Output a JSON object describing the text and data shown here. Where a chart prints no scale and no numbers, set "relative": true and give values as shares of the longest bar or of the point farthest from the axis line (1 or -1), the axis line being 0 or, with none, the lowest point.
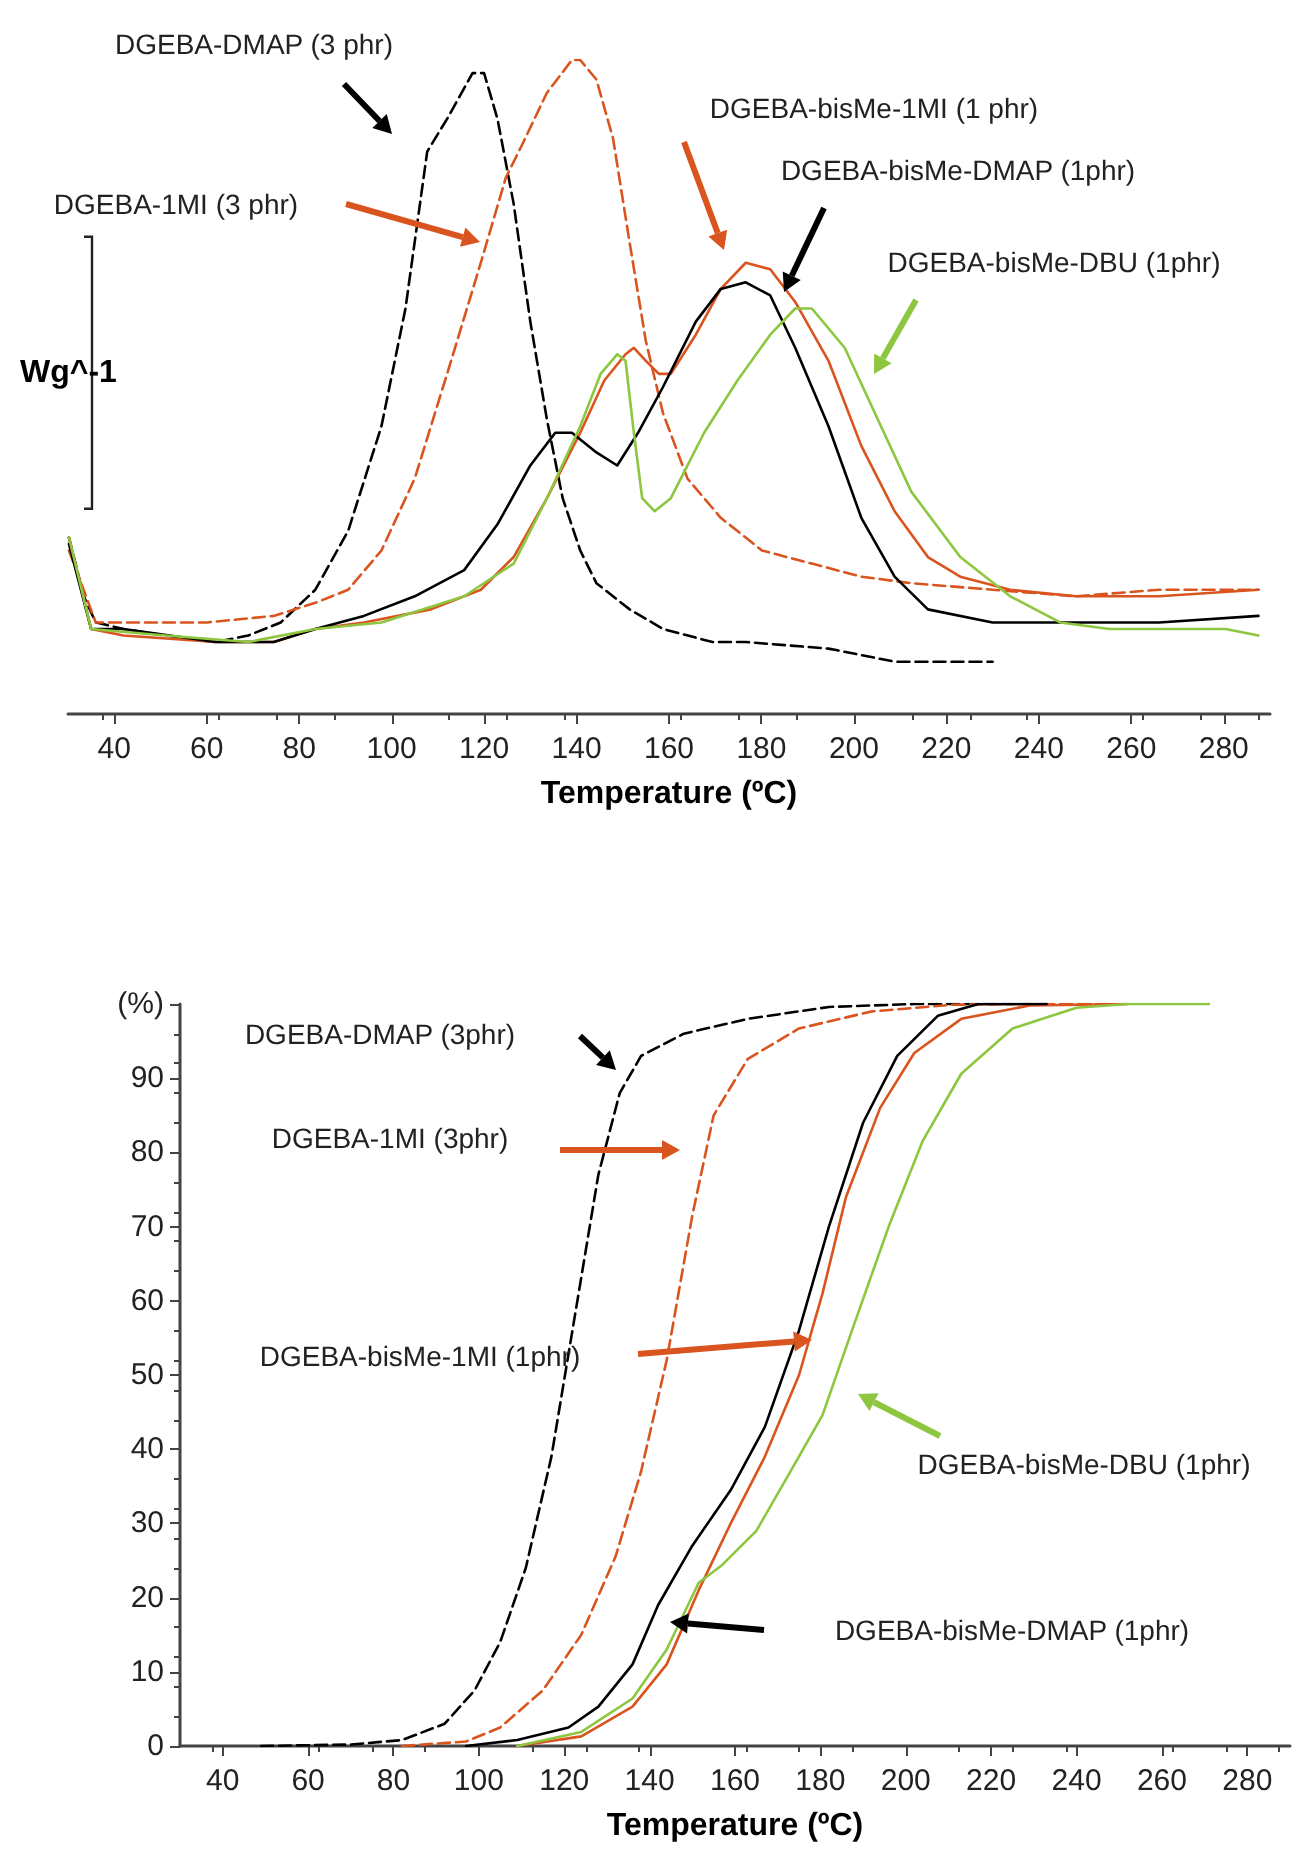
{
  "chart_data": [
    {
      "type": "line",
      "relative": true,
      "marker": "none",
      "grid": false,
      "xlabel": "Temperature (ºC)",
      "ylabel": "Wg^-1",
      "xlim": [
        30,
        290
      ],
      "xticks": [
        40,
        60,
        80,
        100,
        120,
        140,
        160,
        180,
        200,
        220,
        240,
        260,
        280
      ],
      "annotations": [
        "DGEBA-DMAP (3 phr)",
        "DGEBA-1MI (3 phr)",
        "DGEBA-bisMe-1MI (1 phr)",
        "DGEBA-bisMe-DMAP (1phr)",
        "DGEBA-bisMe-DBU (1phr)"
      ],
      "series": [
        {
          "color": "#000000",
          "line_style": "dashed",
          "x": [
            30.2,
            33.4,
            36,
            42,
            51,
            62,
            69,
            76,
            83.5,
            90.6,
            97.8,
            103,
            107.7,
            112,
            117.5,
            120,
            122.9,
            126.4,
            130,
            133.6,
            137,
            140.8,
            144.3,
            151.5,
            158.7,
            169.4,
            176.6,
            194.5,
            208.8,
            230
          ],
          "values": [
            0.27,
            0.18,
            0.14,
            0.13,
            0.12,
            0.11,
            0.12,
            0.14,
            0.19,
            0.28,
            0.44,
            0.62,
            0.86,
            0.91,
            0.98,
            0.98,
            0.91,
            0.78,
            0.6,
            0.45,
            0.33,
            0.25,
            0.2,
            0.16,
            0.13,
            0.11,
            0.11,
            0.1,
            0.08,
            0.08
          ]
        },
        {
          "color": "#d9541e",
          "line_style": "dashed",
          "x": [
            30.2,
            36,
            42,
            60,
            74.5,
            83.5,
            90.6,
            97.8,
            105,
            112,
            119.3,
            124.7,
            128.2,
            133.6,
            139,
            140.8,
            144.3,
            147.9,
            151.5,
            155,
            158.7,
            164,
            171.2,
            180.1,
            190.9,
            201.6,
            212.4,
            230,
            248,
            266,
            287.5
          ],
          "values": [
            0.25,
            0.14,
            0.14,
            0.14,
            0.15,
            0.17,
            0.19,
            0.25,
            0.36,
            0.52,
            0.69,
            0.82,
            0.87,
            0.95,
            1.0,
            1.0,
            0.97,
            0.88,
            0.72,
            0.57,
            0.46,
            0.36,
            0.3,
            0.25,
            0.23,
            0.21,
            0.2,
            0.19,
            0.18,
            0.19,
            0.19
          ]
        },
        {
          "color": "#d9541e",
          "line_style": "solid",
          "x": [
            30.2,
            35,
            42,
            62,
            74.5,
            83.5,
            94,
            108.5,
            119.3,
            126.4,
            133.6,
            140.8,
            146,
            150.6,
            152.4,
            155,
            157.8,
            160.4,
            165.8,
            171.2,
            176.6,
            181.9,
            187.3,
            194.5,
            201.6,
            208.8,
            216,
            223,
            233.8,
            248,
            266,
            287.5
          ],
          "values": [
            0.27,
            0.13,
            0.12,
            0.11,
            0.11,
            0.13,
            0.14,
            0.16,
            0.19,
            0.24,
            0.33,
            0.43,
            0.51,
            0.55,
            0.56,
            0.54,
            0.52,
            0.52,
            0.58,
            0.65,
            0.69,
            0.68,
            0.63,
            0.54,
            0.41,
            0.31,
            0.24,
            0.21,
            0.19,
            0.18,
            0.18,
            0.19
          ]
        },
        {
          "color": "#000000",
          "line_style": "solid",
          "x": [
            30.2,
            35,
            42,
            62,
            74.5,
            83.5,
            94,
            105,
            115.7,
            122.9,
            130,
            135.4,
            139,
            144.3,
            148.8,
            153.3,
            158.7,
            165.8,
            171.2,
            176.6,
            181.9,
            187.3,
            194.5,
            201.6,
            208.8,
            216,
            230,
            244.6,
            266,
            287.5
          ],
          "values": [
            0.26,
            0.13,
            0.13,
            0.11,
            0.11,
            0.13,
            0.15,
            0.18,
            0.22,
            0.29,
            0.38,
            0.43,
            0.43,
            0.4,
            0.38,
            0.43,
            0.5,
            0.6,
            0.65,
            0.66,
            0.64,
            0.56,
            0.44,
            0.3,
            0.21,
            0.16,
            0.14,
            0.14,
            0.14,
            0.15
          ]
        },
        {
          "color": "#8dc63f",
          "line_style": "solid",
          "x": [
            30.2,
            35,
            51,
            69,
            83.5,
            97.8,
            115.7,
            126.4,
            133.6,
            140.8,
            145.2,
            148.8,
            150.6,
            152.4,
            154.2,
            156.9,
            160.4,
            167.6,
            174.8,
            181.9,
            187.3,
            190.9,
            198,
            205.2,
            212.4,
            223,
            233.8,
            244.6,
            255.3,
            280.4,
            287.5
          ],
          "values": [
            0.27,
            0.13,
            0.12,
            0.11,
            0.13,
            0.14,
            0.18,
            0.23,
            0.33,
            0.44,
            0.52,
            0.55,
            0.54,
            0.43,
            0.33,
            0.31,
            0.33,
            0.43,
            0.51,
            0.58,
            0.62,
            0.62,
            0.56,
            0.45,
            0.34,
            0.24,
            0.18,
            0.14,
            0.13,
            0.13,
            0.12
          ]
        }
      ]
    },
    {
      "type": "line",
      "marker": "none",
      "grid": false,
      "xlabel": "Temperature (ºC)",
      "xlim": [
        30,
        290
      ],
      "xticks": [
        40,
        60,
        80,
        100,
        120,
        140,
        160,
        180,
        200,
        220,
        240,
        260,
        280
      ],
      "ylim": [
        0,
        100
      ],
      "yticks": [
        0,
        10,
        20,
        30,
        40,
        50,
        60,
        70,
        80,
        90,
        {
          "value": 100,
          "label": "(%)"
        }
      ],
      "annotations": [
        "DGEBA-DMAP (3phr)",
        "DGEBA-1MI (3phr)",
        "DGEBA-bisMe-1MI (1phr)",
        "DGEBA-bisMe-DBU (1phr)",
        "DGEBA-bisMe-DMAP (1phr)"
      ],
      "series": [
        {
          "color": "#000000",
          "line_style": "dashed",
          "x": [
            49,
            70,
            82,
            92,
            99,
            105,
            111,
            117,
            122.5,
            128,
            133,
            138,
            148,
            163,
            182,
            202,
            221,
            233
          ],
          "values": [
            0,
            0.2,
            0.8,
            3,
            7.5,
            14,
            24,
            39,
            58,
            77,
            88,
            93,
            96,
            98,
            99.6,
            100,
            100,
            100
          ]
        },
        {
          "color": "#d9541e",
          "line_style": "dashed",
          "x": [
            82,
            97,
            105,
            115,
            124,
            132,
            138,
            144,
            150,
            155,
            163,
            175,
            192,
            211,
            231,
            252
          ],
          "values": [
            0,
            0.6,
            2.5,
            7.5,
            15,
            25.5,
            37,
            52,
            71.5,
            85,
            92.6,
            96.7,
            99,
            99.9,
            100,
            100
          ]
        },
        {
          "color": "#d9541e",
          "line_style": "solid",
          "x": [
            109,
            124,
            136,
            144,
            151.5,
            159,
            167,
            175,
            180.5,
            186,
            194,
            202,
            213,
            229,
            252
          ],
          "values": [
            0,
            1.3,
            5.3,
            11,
            21,
            30,
            39,
            50,
            61,
            74,
            86,
            93.4,
            98,
            99.8,
            100
          ]
        },
        {
          "color": "#000000",
          "line_style": "solid",
          "x": [
            97,
            109,
            121,
            128,
            136,
            142,
            150,
            159,
            167,
            175,
            182,
            190,
            198,
            207.5,
            217,
            233
          ],
          "values": [
            0,
            0.8,
            2.5,
            5.3,
            11,
            19,
            27,
            34.5,
            43,
            56,
            70,
            84,
            93,
            98.4,
            100,
            100
          ]
        },
        {
          "color": "#8dc63f",
          "line_style": "solid",
          "x": [
            109,
            124,
            136,
            144,
            151.5,
            157,
            165,
            173,
            180.5,
            188,
            196,
            204,
            213,
            225,
            240,
            252,
            271
          ],
          "values": [
            0,
            1.9,
            6.4,
            13,
            22,
            24.4,
            29,
            37,
            44.6,
            57,
            70,
            81.6,
            90.6,
            96.7,
            99.5,
            100,
            100
          ]
        }
      ]
    }
  ]
}
